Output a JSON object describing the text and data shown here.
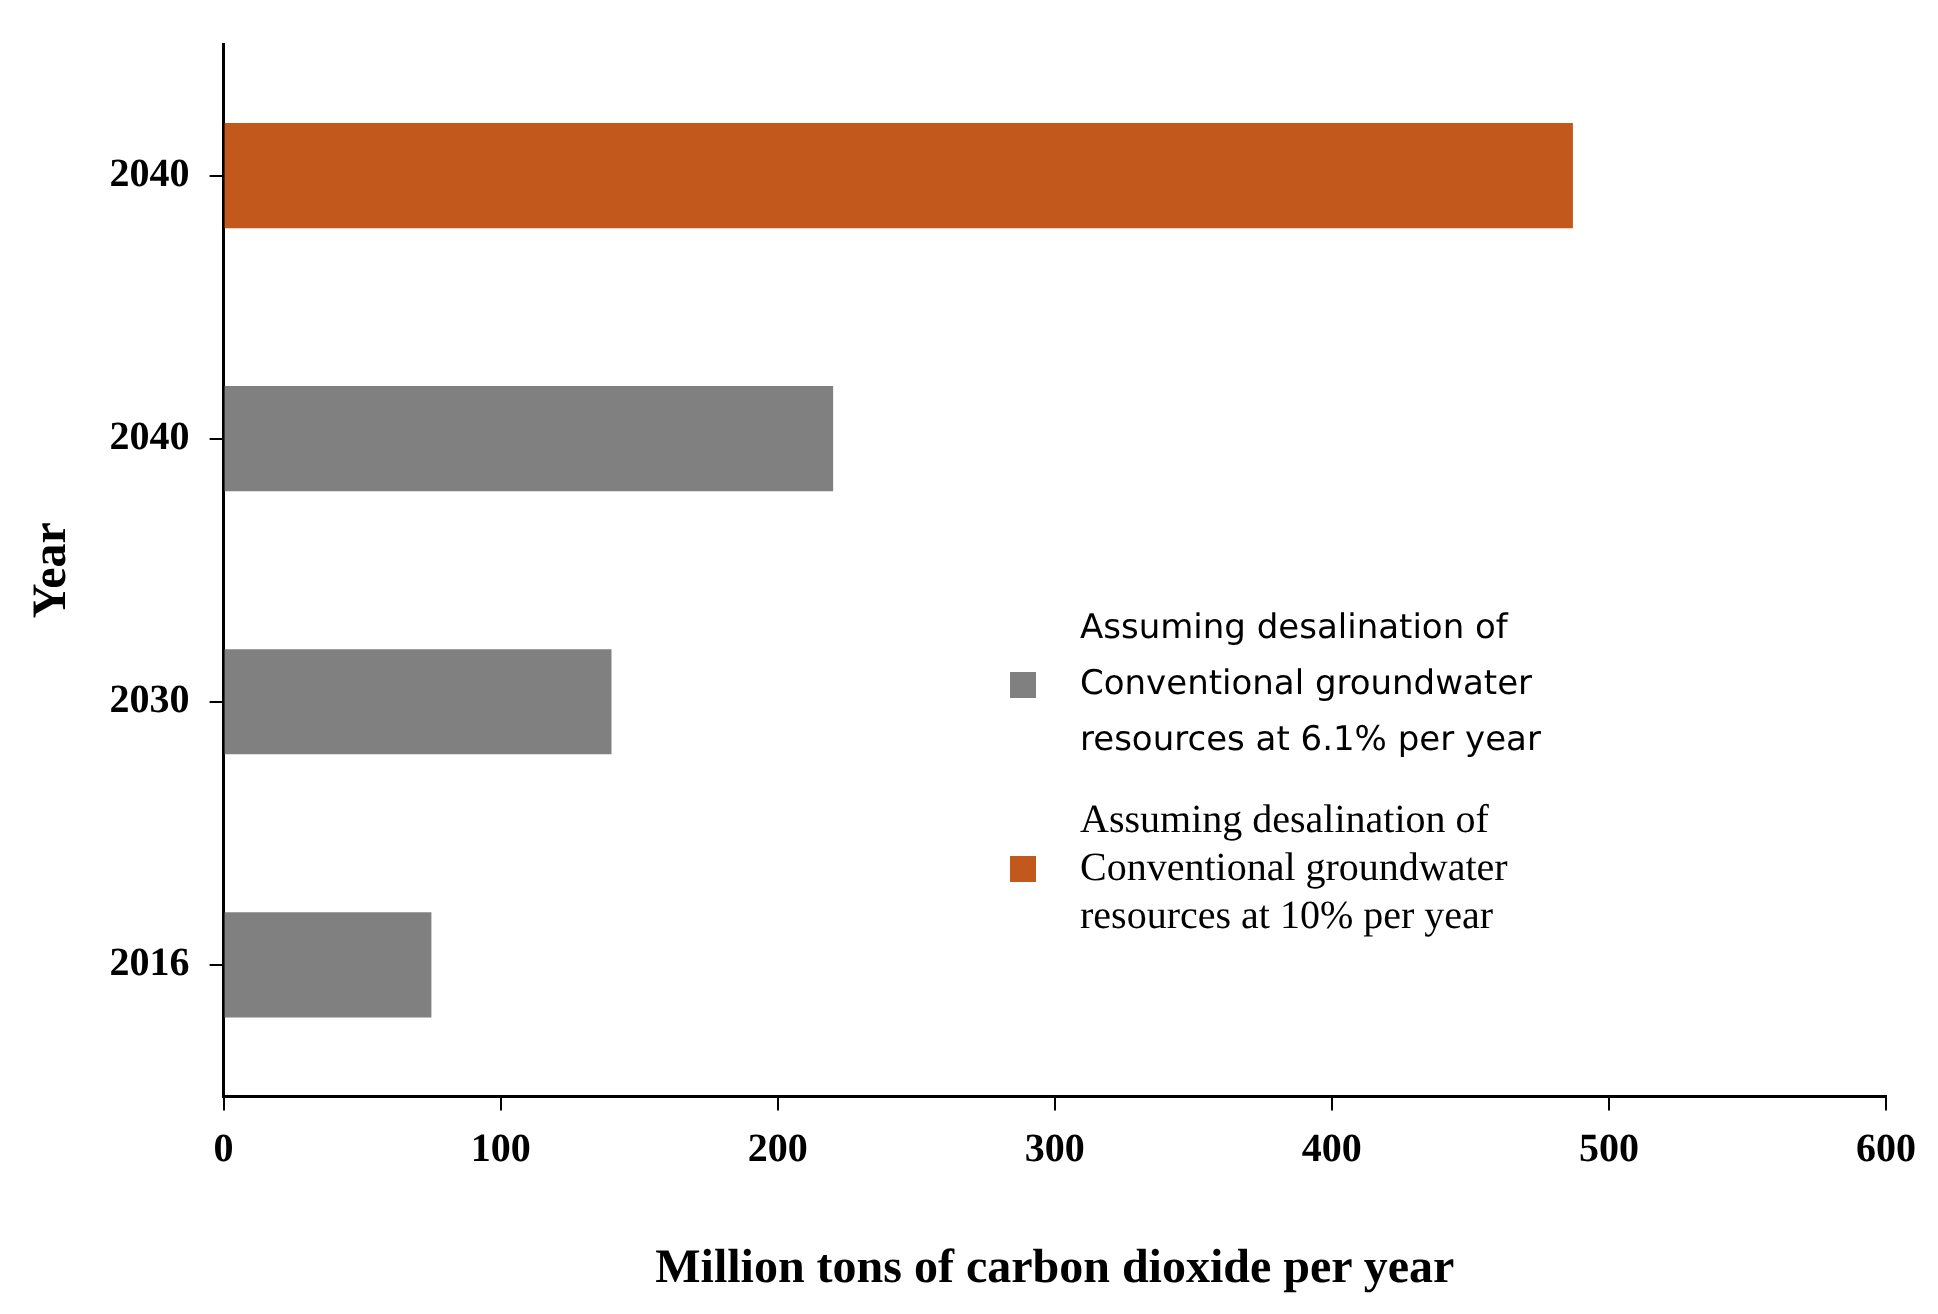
{
  "chart_data": {
    "type": "bar",
    "orientation": "horizontal",
    "xlabel": "Million tons of carbon dioxide per year",
    "ylabel": "Year",
    "categories": [
      "2040",
      "2040",
      "2030",
      "2016"
    ],
    "series": [
      {
        "name": "Assuming desalination of Conventional groundwater resources at 6.1% per year",
        "color": "#808080",
        "values": [
          null,
          220,
          140,
          75
        ]
      },
      {
        "name": "Assuming desalination of Conventional groundwater resources at 10% per year",
        "color": "#c3581d",
        "values": [
          487,
          null,
          null,
          null
        ]
      }
    ],
    "xlim": [
      0,
      600
    ],
    "xticks": [
      0,
      100,
      200,
      300,
      400,
      500,
      600
    ],
    "grid": false,
    "legend": "right"
  }
}
